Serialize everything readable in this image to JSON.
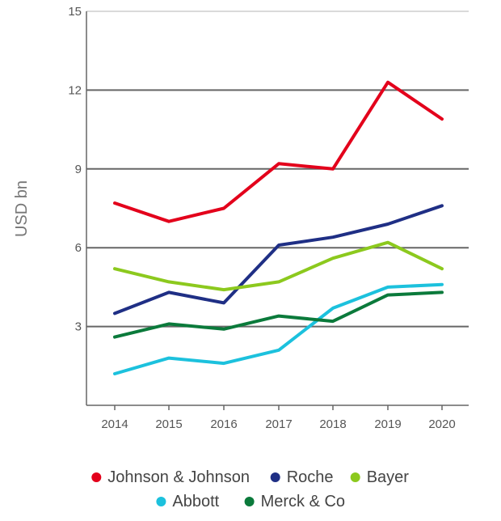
{
  "chart_data": {
    "type": "line",
    "title": "",
    "xlabel": "",
    "ylabel": "USD bn",
    "x": [
      "2014",
      "2015",
      "2016",
      "2017",
      "2018",
      "2019",
      "2020"
    ],
    "ylim": [
      0,
      15
    ],
    "yticks": [
      3,
      6,
      9,
      12,
      15
    ],
    "grid": true,
    "legend_position": "bottom",
    "series": [
      {
        "name": "Johnson & Johnson",
        "color": "#e3001b",
        "values": [
          7.7,
          7.0,
          7.5,
          9.2,
          9.0,
          12.3,
          10.9
        ]
      },
      {
        "name": "Roche",
        "color": "#1f2f85",
        "values": [
          3.5,
          4.3,
          3.9,
          6.1,
          6.4,
          6.9,
          7.6
        ]
      },
      {
        "name": "Bayer",
        "color": "#8cc91e",
        "values": [
          5.2,
          4.7,
          4.4,
          4.7,
          5.6,
          6.2,
          5.2
        ]
      },
      {
        "name": "Abbott",
        "color": "#1cc1dd",
        "values": [
          1.2,
          1.8,
          1.6,
          2.1,
          3.7,
          4.5,
          4.6
        ]
      },
      {
        "name": "Merck & Co",
        "color": "#0b7a3b",
        "values": [
          2.6,
          3.1,
          2.9,
          3.4,
          3.2,
          4.2,
          4.3
        ]
      }
    ],
    "legend_rows": [
      [
        "Johnson & Johnson",
        "Roche",
        "Bayer"
      ],
      [
        "Abbott",
        "Merck & Co"
      ]
    ]
  }
}
